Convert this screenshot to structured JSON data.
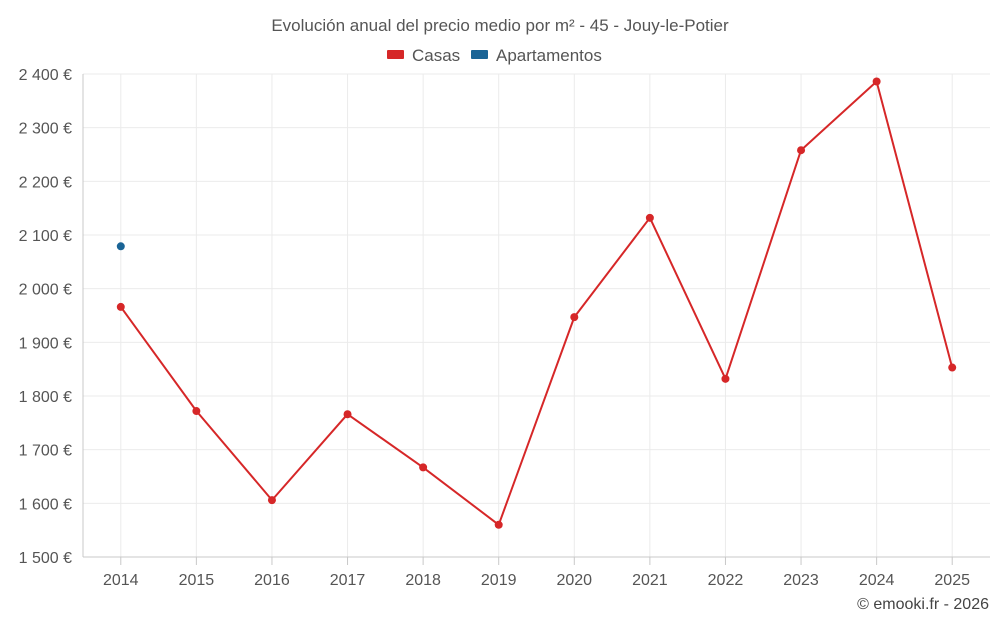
{
  "chart_data": {
    "type": "line",
    "title": "Evolución anual del precio medio por m² - 45 - Jouy-le-Potier",
    "xlabel": "",
    "ylabel": "",
    "categories": [
      "2014",
      "2015",
      "2016",
      "2017",
      "2018",
      "2019",
      "2020",
      "2021",
      "2022",
      "2023",
      "2024",
      "2025"
    ],
    "ylim": [
      1500,
      2400
    ],
    "yticks": [
      1500,
      1600,
      1700,
      1800,
      1900,
      2000,
      2100,
      2200,
      2300,
      2400
    ],
    "ytick_labels": [
      "1 500 €",
      "1 600 €",
      "1 700 €",
      "1 800 €",
      "1 900 €",
      "2 000 €",
      "2 100 €",
      "2 200 €",
      "2 300 €",
      "2 400 €"
    ],
    "grid": true,
    "legend_position": "top-center",
    "series": [
      {
        "name": "Casas",
        "color": "#d62728",
        "values": [
          1966,
          1772,
          1606,
          1766,
          1667,
          1560,
          1947,
          2132,
          1832,
          2258,
          2386,
          1853
        ]
      },
      {
        "name": "Apartamentos",
        "color": "#1a6496",
        "values": [
          2079,
          null,
          null,
          null,
          null,
          null,
          null,
          null,
          null,
          null,
          null,
          null
        ]
      }
    ]
  },
  "credit": "© emooki.fr - 2026"
}
